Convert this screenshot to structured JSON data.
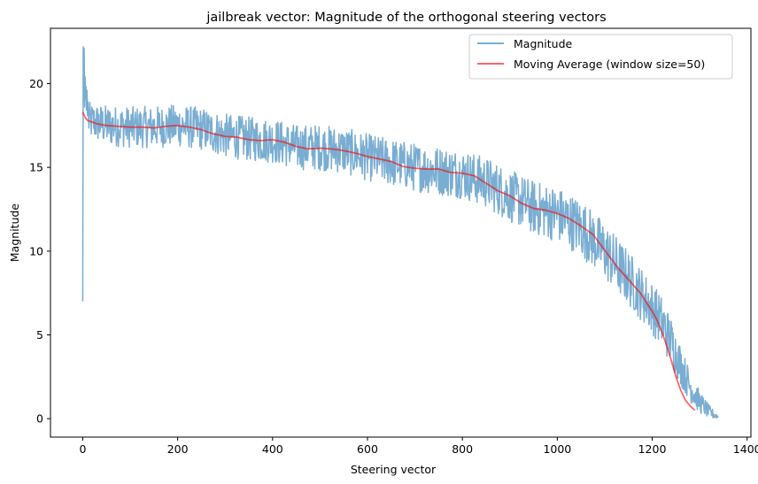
{
  "chart_data": {
    "type": "line",
    "title": "jailbreak vector: Magnitude of the orthogonal steering vectors",
    "xlabel": "Steering vector",
    "ylabel": "Magnitude",
    "xlim": [
      -68,
      1408
    ],
    "ylim": [
      -1.1,
      23.3
    ],
    "xticks": [
      0,
      200,
      400,
      600,
      800,
      1000,
      1200,
      1400
    ],
    "yticks": [
      0,
      5,
      10,
      15,
      20
    ],
    "grid": false,
    "legend_position": "upper right",
    "colors": {
      "magnitude": "#1f77b4",
      "moving_average": "#ff0000"
    },
    "series": [
      {
        "name": "Magnitude",
        "kind": "noisy",
        "n": 1340,
        "start_values": [
          7.0,
          22.2,
          19.0,
          22.1,
          18.6,
          20.4,
          19.1,
          19.8,
          18.4,
          19.6,
          18.1,
          18.9
        ],
        "trend_x": [
          0,
          10,
          50,
          100,
          150,
          200,
          250,
          300,
          350,
          400,
          450,
          500,
          550,
          600,
          650,
          700,
          750,
          800,
          850,
          900,
          950,
          1000,
          1050,
          1100,
          1150,
          1200,
          1220,
          1240,
          1260,
          1280,
          1300,
          1320,
          1339
        ],
        "trend_y": [
          18.3,
          17.8,
          17.5,
          17.4,
          17.4,
          17.5,
          17.3,
          16.9,
          16.7,
          16.6,
          16.2,
          16.2,
          16.0,
          15.6,
          15.3,
          15.0,
          14.8,
          14.6,
          14.1,
          13.3,
          12.6,
          12.2,
          11.4,
          10.0,
          8.4,
          6.6,
          5.8,
          4.6,
          3.2,
          1.9,
          1.0,
          0.4,
          0.1
        ],
        "noise_amplitude_x": [
          0,
          50,
          800,
          1100,
          1240,
          1300,
          1339
        ],
        "noise_amplitude_y": [
          0.8,
          0.9,
          1.1,
          1.3,
          1.1,
          0.5,
          0.1
        ]
      },
      {
        "name": "Moving Average (window size=50)",
        "x": [
          0,
          5,
          10,
          20,
          30,
          40,
          50,
          75,
          100,
          125,
          150,
          175,
          200,
          225,
          250,
          275,
          300,
          325,
          350,
          375,
          400,
          425,
          450,
          475,
          500,
          525,
          550,
          575,
          600,
          625,
          650,
          675,
          700,
          725,
          750,
          775,
          800,
          825,
          850,
          875,
          900,
          925,
          950,
          975,
          1000,
          1025,
          1050,
          1075,
          1100,
          1125,
          1150,
          1175,
          1200,
          1210,
          1220,
          1230,
          1240,
          1250,
          1260,
          1270,
          1280,
          1290
        ],
        "y": [
          18.3,
          18.0,
          17.8,
          17.7,
          17.6,
          17.55,
          17.5,
          17.45,
          17.4,
          17.4,
          17.35,
          17.45,
          17.5,
          17.4,
          17.25,
          17.0,
          16.85,
          16.8,
          16.65,
          16.6,
          16.65,
          16.5,
          16.25,
          16.1,
          16.15,
          16.1,
          16.0,
          15.85,
          15.65,
          15.5,
          15.35,
          15.05,
          14.95,
          14.9,
          14.9,
          14.7,
          14.65,
          14.5,
          14.05,
          13.6,
          13.3,
          12.85,
          12.55,
          12.45,
          12.25,
          11.95,
          11.5,
          11.0,
          10.05,
          9.1,
          8.3,
          7.5,
          6.4,
          5.9,
          5.2,
          4.4,
          3.5,
          2.5,
          1.7,
          1.1,
          0.75,
          0.5
        ]
      }
    ]
  }
}
